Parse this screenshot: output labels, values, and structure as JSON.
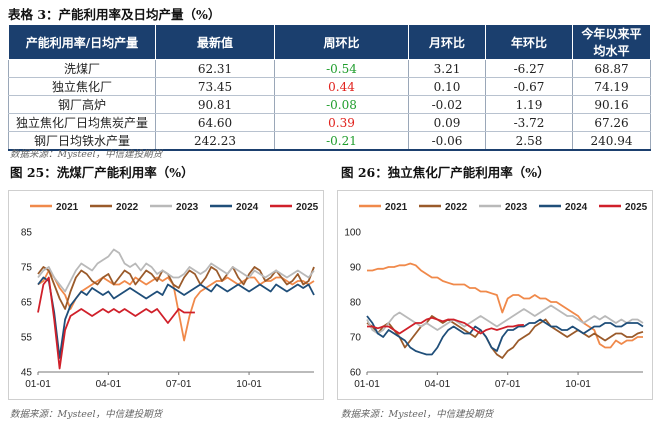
{
  "table": {
    "title": "表格 3：产能利用率及日均产量（%）",
    "headers": [
      "产能利用率/日均产量",
      "最新值",
      "周环比",
      "月环比",
      "年环比",
      "今年以来平均水平"
    ],
    "rows": [
      {
        "name": "洗煤厂",
        "latest": "62.31",
        "wow": "-0.54",
        "wow_sign": "neg",
        "mom": "3.21",
        "yoy": "-6.27",
        "ytd": "68.87"
      },
      {
        "name": "独立焦化厂",
        "latest": "73.45",
        "wow": "0.44",
        "wow_sign": "pos",
        "mom": "0.10",
        "yoy": "-0.67",
        "ytd": "74.19"
      },
      {
        "name": "钢厂高炉",
        "latest": "90.81",
        "wow": "-0.08",
        "wow_sign": "neg",
        "mom": "-0.02",
        "yoy": "1.19",
        "ytd": "90.16"
      },
      {
        "name": "独立焦化厂日均焦炭产量",
        "latest": "64.60",
        "wow": "0.39",
        "wow_sign": "pos",
        "mom": "0.09",
        "yoy": "-3.72",
        "ytd": "67.26"
      },
      {
        "name": "钢厂日均铁水产量",
        "latest": "242.23",
        "wow": "-0.21",
        "wow_sign": "neg",
        "mom": "-0.06",
        "yoy": "2.58",
        "ytd": "240.94"
      }
    ],
    "source": "数据来源：Mysteel，中信建投期货"
  },
  "colors": {
    "2021": "#f0894a",
    "2022": "#9a5a2a",
    "2023": "#b9b9b9",
    "2024": "#1f4e79",
    "2025": "#d0202a"
  },
  "chart_data": [
    {
      "type": "line",
      "title": "图 25：洗煤厂产能利用率（%）",
      "source": "数据来源：Mysteel，中信建投期货",
      "legend": [
        "2021",
        "2022",
        "2023",
        "2024",
        "2025"
      ],
      "x_ticks": [
        "01-01",
        "04-01",
        "07-01",
        "10-01"
      ],
      "y_ticks": [
        45,
        55,
        65,
        75,
        85
      ],
      "ylim": [
        45,
        85
      ],
      "x_domain": [
        1,
        52
      ],
      "series": [
        {
          "name": "2021",
          "x": [
            1,
            2,
            3,
            4,
            5,
            6,
            7,
            8,
            9,
            10,
            11,
            12,
            13,
            14,
            15,
            16,
            17,
            18,
            19,
            20,
            21,
            22,
            23,
            24,
            25,
            26,
            27,
            28,
            29,
            30,
            31,
            32,
            33,
            34,
            35,
            36,
            37,
            38,
            39,
            40,
            41,
            42,
            43,
            44,
            45,
            46,
            47,
            48,
            49,
            50,
            51,
            52
          ],
          "values": [
            70,
            71,
            74,
            72,
            69,
            67,
            63,
            66,
            68,
            69,
            70,
            71,
            72,
            71,
            70,
            70,
            71,
            70,
            72,
            71,
            70,
            71,
            72,
            71,
            72,
            70,
            62,
            54,
            61,
            66,
            68,
            69,
            70,
            71,
            71,
            72,
            71,
            70,
            71,
            72,
            72,
            70,
            71,
            71,
            72,
            72,
            71,
            70,
            71,
            71,
            70,
            71
          ]
        },
        {
          "name": "2022",
          "x": [
            1,
            2,
            3,
            4,
            5,
            6,
            7,
            8,
            9,
            10,
            11,
            12,
            13,
            14,
            15,
            16,
            17,
            18,
            19,
            20,
            21,
            22,
            23,
            24,
            25,
            26,
            27,
            28,
            29,
            30,
            31,
            32,
            33,
            34,
            35,
            36,
            37,
            38,
            39,
            40,
            41,
            42,
            43,
            44,
            45,
            46,
            47,
            48,
            49,
            50,
            51,
            52
          ],
          "values": [
            73,
            75,
            74,
            70,
            66,
            63,
            68,
            72,
            74,
            73,
            71,
            70,
            72,
            73,
            70,
            72,
            74,
            73,
            70,
            72,
            74,
            73,
            71,
            74,
            73,
            70,
            69,
            72,
            74,
            73,
            70,
            72,
            75,
            74,
            71,
            73,
            75,
            72,
            70,
            73,
            75,
            74,
            71,
            72,
            74,
            72,
            70,
            71,
            73,
            70,
            71,
            75
          ]
        },
        {
          "name": "2023",
          "x": [
            1,
            2,
            3,
            4,
            5,
            6,
            7,
            8,
            9,
            10,
            11,
            12,
            13,
            14,
            15,
            16,
            17,
            18,
            19,
            20,
            21,
            22,
            23,
            24,
            25,
            26,
            27,
            28,
            29,
            30,
            31,
            32,
            33,
            34,
            35,
            36,
            37,
            38,
            39,
            40,
            41,
            42,
            43,
            44,
            45,
            46,
            47,
            48,
            49,
            50,
            51,
            52
          ],
          "values": [
            72,
            74,
            75,
            72,
            70,
            68,
            71,
            74,
            76,
            75,
            74,
            76,
            77,
            78,
            80,
            79,
            76,
            75,
            76,
            74,
            76,
            75,
            73,
            74,
            73,
            72,
            72,
            73,
            75,
            74,
            73,
            74,
            76,
            75,
            74,
            73,
            75,
            74,
            73,
            72,
            74,
            73,
            72,
            73,
            74,
            73,
            72,
            73,
            74,
            73,
            72,
            74
          ]
        },
        {
          "name": "2024",
          "x": [
            1,
            2,
            3,
            4,
            5,
            6,
            7,
            8,
            9,
            10,
            11,
            12,
            13,
            14,
            15,
            16,
            17,
            18,
            19,
            20,
            21,
            22,
            23,
            24,
            25,
            26,
            27,
            28,
            29,
            30,
            31,
            32,
            33,
            34,
            35,
            36,
            37,
            38,
            39,
            40,
            41,
            42,
            43,
            44,
            45,
            46,
            47,
            48,
            49,
            50,
            51,
            52
          ],
          "values": [
            70,
            72,
            71,
            62,
            49,
            60,
            64,
            66,
            68,
            67,
            69,
            68,
            67,
            68,
            66,
            67,
            68,
            69,
            68,
            67,
            66,
            67,
            68,
            67,
            70,
            69,
            68,
            67,
            68,
            69,
            70,
            69,
            68,
            70,
            69,
            68,
            69,
            70,
            69,
            68,
            69,
            70,
            69,
            68,
            70,
            69,
            68,
            69,
            70,
            69,
            70,
            67
          ]
        },
        {
          "name": "2025",
          "x": [
            1,
            2,
            3,
            4,
            5,
            6,
            7,
            8,
            9,
            10,
            11,
            12,
            13,
            14,
            15,
            16,
            17,
            18,
            19,
            20,
            21,
            22,
            23,
            24,
            25,
            26,
            27,
            28,
            29,
            30
          ],
          "values": [
            62,
            70,
            72,
            60,
            46,
            57,
            61,
            62,
            63,
            62,
            61,
            62,
            63,
            62,
            63,
            62,
            63,
            62,
            61,
            62,
            63,
            62,
            63,
            61,
            59,
            61,
            63,
            62,
            62,
            62
          ]
        }
      ]
    },
    {
      "type": "line",
      "title": "图 26：独立焦化厂产能利用率（%）",
      "source": "数据来源：Mysteel，中信建投期货",
      "legend": [
        "2021",
        "2022",
        "2023",
        "2024",
        "2025"
      ],
      "x_ticks": [
        "01-01",
        "04-01",
        "07-01",
        "10-01"
      ],
      "y_ticks": [
        60,
        70,
        80,
        90,
        100
      ],
      "ylim": [
        60,
        100
      ],
      "x_domain": [
        1,
        52
      ],
      "series": [
        {
          "name": "2021",
          "x": [
            1,
            2,
            3,
            4,
            5,
            6,
            7,
            8,
            9,
            10,
            11,
            12,
            13,
            14,
            15,
            16,
            17,
            18,
            19,
            20,
            21,
            22,
            23,
            24,
            25,
            26,
            27,
            28,
            29,
            30,
            31,
            32,
            33,
            34,
            35,
            36,
            37,
            38,
            39,
            40,
            41,
            42,
            43,
            44,
            45,
            46,
            47,
            48,
            49,
            50,
            51,
            52
          ],
          "values": [
            89,
            89,
            89.5,
            89.5,
            90,
            90,
            90.5,
            90.5,
            91,
            90.5,
            89,
            88,
            87,
            87,
            86,
            85.5,
            85,
            85,
            85,
            84,
            84,
            83,
            83,
            82.5,
            82,
            77,
            81,
            82,
            82,
            81,
            81,
            82,
            81,
            81,
            80,
            80,
            79,
            78,
            77,
            76,
            74,
            73,
            72,
            68,
            67,
            67,
            69,
            68,
            69,
            69,
            70,
            70
          ]
        },
        {
          "name": "2022",
          "x": [
            1,
            2,
            3,
            4,
            5,
            6,
            7,
            8,
            9,
            10,
            11,
            12,
            13,
            14,
            15,
            16,
            17,
            18,
            19,
            20,
            21,
            22,
            23,
            24,
            25,
            26,
            27,
            28,
            29,
            30,
            31,
            32,
            33,
            34,
            35,
            36,
            37,
            38,
            39,
            40,
            41,
            42,
            43,
            44,
            45,
            46,
            47,
            48,
            49,
            50,
            51,
            52
          ],
          "values": [
            74,
            73,
            71,
            73,
            74,
            72,
            70,
            67,
            69,
            71,
            73,
            74,
            76,
            75,
            74,
            75,
            74,
            73,
            72,
            71,
            70,
            72,
            70,
            67,
            65,
            64,
            66,
            67,
            69,
            70,
            71,
            73,
            74,
            75,
            73,
            72,
            71,
            70,
            71,
            72,
            71,
            70,
            71,
            70,
            69,
            70,
            71,
            71,
            70,
            70,
            71,
            71.5
          ]
        },
        {
          "name": "2023",
          "x": [
            1,
            2,
            3,
            4,
            5,
            6,
            7,
            8,
            9,
            10,
            11,
            12,
            13,
            14,
            15,
            16,
            17,
            18,
            19,
            20,
            21,
            22,
            23,
            24,
            25,
            26,
            27,
            28,
            29,
            30,
            31,
            32,
            33,
            34,
            35,
            36,
            37,
            38,
            39,
            40,
            41,
            42,
            43,
            44,
            45,
            46,
            47,
            48,
            49,
            50,
            51,
            52
          ],
          "values": [
            75,
            72,
            71,
            72,
            74,
            76,
            77,
            76,
            75,
            74,
            73,
            74,
            73,
            72,
            73,
            74,
            75,
            74,
            73,
            74,
            75,
            76,
            75,
            74,
            73,
            74,
            75,
            76,
            77,
            78,
            77,
            76,
            77,
            78,
            79,
            78,
            77,
            76,
            76,
            75,
            74,
            75,
            76,
            75,
            76,
            75,
            74,
            75,
            74,
            75,
            75,
            74
          ]
        },
        {
          "name": "2024",
          "x": [
            1,
            2,
            3,
            4,
            5,
            6,
            7,
            8,
            9,
            10,
            11,
            12,
            13,
            14,
            15,
            16,
            17,
            18,
            19,
            20,
            21,
            22,
            23,
            24,
            25,
            26,
            27,
            28,
            29,
            30,
            31,
            32,
            33,
            34,
            35,
            36,
            37,
            38,
            39,
            40,
            41,
            42,
            43,
            44,
            45,
            46,
            47,
            48,
            49,
            50,
            51,
            52
          ],
          "values": [
            76,
            74,
            71,
            70,
            72,
            71,
            70,
            69,
            67,
            66,
            65.5,
            65,
            65,
            67,
            70,
            72,
            73,
            72,
            71,
            71,
            73,
            72,
            70,
            67,
            66,
            70,
            72,
            72,
            73,
            73,
            74,
            74,
            75,
            74,
            73,
            73,
            72,
            72,
            73,
            72,
            71,
            72,
            73,
            73,
            74,
            74,
            73,
            73,
            74,
            74,
            74,
            73
          ]
        },
        {
          "name": "2025",
          "x": [
            1,
            2,
            3,
            4,
            5,
            6,
            7,
            8,
            9,
            10,
            11,
            12,
            13,
            14,
            15,
            16,
            17,
            18,
            19,
            20,
            21,
            22,
            23,
            24,
            25,
            26,
            27,
            28,
            29,
            30
          ],
          "values": [
            73,
            73,
            72.5,
            73,
            73,
            72,
            71,
            72,
            73,
            74,
            74,
            75,
            75.5,
            75,
            74.5,
            75,
            75,
            74.5,
            74,
            73,
            72,
            71,
            72,
            72.5,
            72,
            72.5,
            73,
            73,
            73.4,
            73.45
          ]
        }
      ]
    }
  ]
}
